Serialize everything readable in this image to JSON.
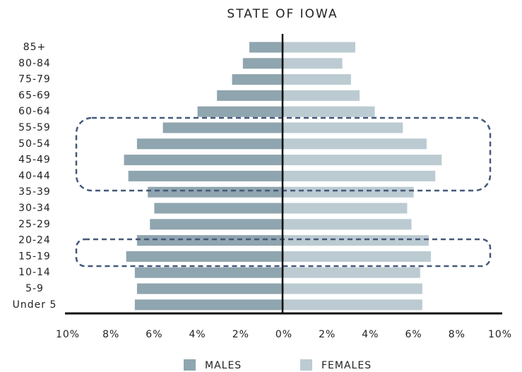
{
  "chart_data": {
    "type": "population-pyramid",
    "title": "STATE OF IOWA",
    "categories": [
      "85+",
      "80-84",
      "75-79",
      "65-69",
      "60-64",
      "55-59",
      "50-54",
      "45-49",
      "40-44",
      "35-39",
      "30-34",
      "25-29",
      "20-24",
      "15-19",
      "10-14",
      "5-9",
      "Under 5"
    ],
    "series": [
      {
        "name": "MALES",
        "color": "#8fa5af",
        "values": [
          1.6,
          1.9,
          2.4,
          3.1,
          4.0,
          5.6,
          6.8,
          7.4,
          7.2,
          6.3,
          6.0,
          6.2,
          6.8,
          7.3,
          6.9,
          6.8,
          6.9
        ]
      },
      {
        "name": "FEMALES",
        "color": "#bccbd2",
        "values": [
          3.3,
          2.7,
          3.1,
          3.5,
          4.2,
          5.5,
          6.6,
          7.3,
          7.0,
          6.0,
          5.7,
          5.9,
          6.7,
          6.8,
          6.3,
          6.4,
          6.4
        ]
      }
    ],
    "xlim": [
      -10,
      10
    ],
    "xticks": [
      {
        "value": -10,
        "label": "10%"
      },
      {
        "value": -8,
        "label": "8%"
      },
      {
        "value": -6,
        "label": "6%"
      },
      {
        "value": -4,
        "label": "4%"
      },
      {
        "value": -2,
        "label": "2%"
      },
      {
        "value": 0,
        "label": "0%"
      },
      {
        "value": 2,
        "label": "2%"
      },
      {
        "value": 4,
        "label": "4%"
      },
      {
        "value": 6,
        "label": "6%"
      },
      {
        "value": 8,
        "label": "8%"
      },
      {
        "value": 10,
        "label": "10%"
      }
    ]
  }
}
